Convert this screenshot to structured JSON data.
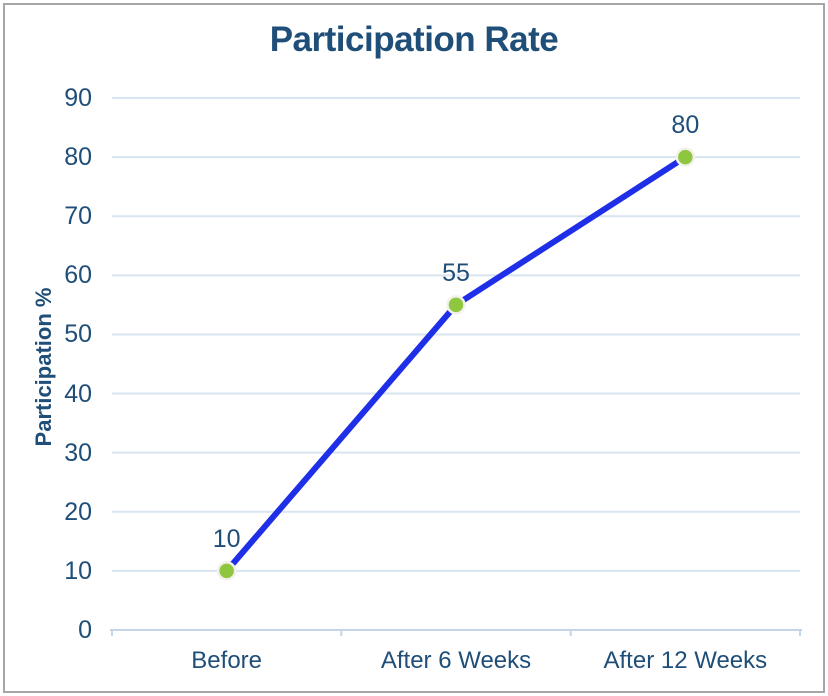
{
  "frame": {
    "border_color": "#A6A6A6"
  },
  "chart_data": {
    "type": "line",
    "title": "Participation Rate",
    "xlabel": "",
    "ylabel": "Participation %",
    "categories": [
      "Before",
      "After 6 Weeks",
      "After 12 Weeks"
    ],
    "series": [
      {
        "name": "Participation Rate",
        "values": [
          10,
          55,
          80
        ],
        "data_labels": [
          "10",
          "55",
          "80"
        ]
      }
    ],
    "ylim": [
      0,
      90
    ],
    "yticks": [
      0,
      10,
      20,
      30,
      40,
      50,
      60,
      70,
      80,
      90
    ],
    "grid": "horizontal",
    "legend_position": "none",
    "colors": {
      "title_text": "#1F4E79",
      "axis_text": "#1F4E79",
      "line": "#1F2FE8",
      "marker_fill": "#8FC63F",
      "marker_halo": "#F2F1E9",
      "gridline": "#D9E4F1",
      "axis_line": "#C5D5E8",
      "frame_border": "#A6A6A6",
      "background": "#FFFFFF"
    }
  }
}
